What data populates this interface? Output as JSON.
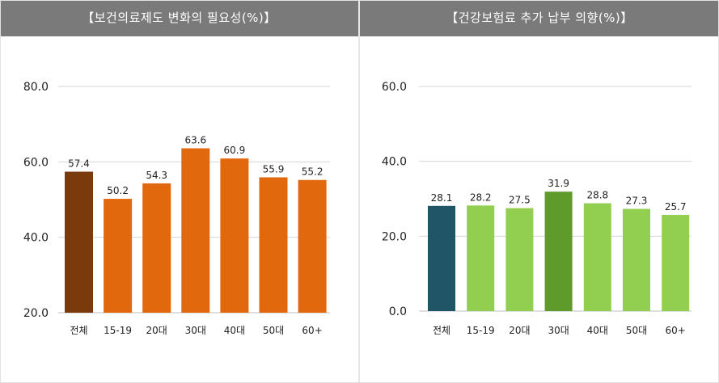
{
  "chart_data": [
    {
      "type": "bar",
      "title": "【보건의료제도 변화의 필요성(%)】",
      "categories": [
        "전체",
        "15-19",
        "20대",
        "30대",
        "40대",
        "50대",
        "60+"
      ],
      "values": [
        57.4,
        50.2,
        54.3,
        63.6,
        60.9,
        55.9,
        55.2
      ],
      "value_labels": [
        "57.4",
        "50.2",
        "54.3",
        "63.6",
        "60.9",
        "55.9",
        "55.2"
      ],
      "yticks": [
        "20.0",
        "40.0",
        "60.0",
        "80.0"
      ],
      "ylim": [
        20,
        80
      ],
      "grid": true,
      "colors": [
        "#7b3a0c",
        "#e2680e",
        "#e2680e",
        "#e2680e",
        "#e2680e",
        "#e2680e",
        "#e2680e"
      ],
      "colors_meaning": "전체 highlighted dark brown, age groups orange"
    },
    {
      "type": "bar",
      "title": "【건강보험료 추가 납부 의향(%)】",
      "categories": [
        "전체",
        "15-19",
        "20대",
        "30대",
        "40대",
        "50대",
        "60+"
      ],
      "values": [
        28.1,
        28.2,
        27.5,
        31.9,
        28.8,
        27.3,
        25.7
      ],
      "value_labels": [
        "28.1",
        "28.2",
        "27.5",
        "31.9",
        "28.8",
        "27.3",
        "25.7"
      ],
      "yticks": [
        "0.0",
        "20.0",
        "40.0",
        "60.0"
      ],
      "ylim": [
        0,
        60
      ],
      "grid": true,
      "colors": [
        "#1f5566",
        "#92cf50",
        "#92cf50",
        "#5f9b2a",
        "#92cf50",
        "#92cf50",
        "#92cf50"
      ],
      "colors_meaning": "전체 dark teal, age groups light green, 30대 dark green"
    }
  ]
}
